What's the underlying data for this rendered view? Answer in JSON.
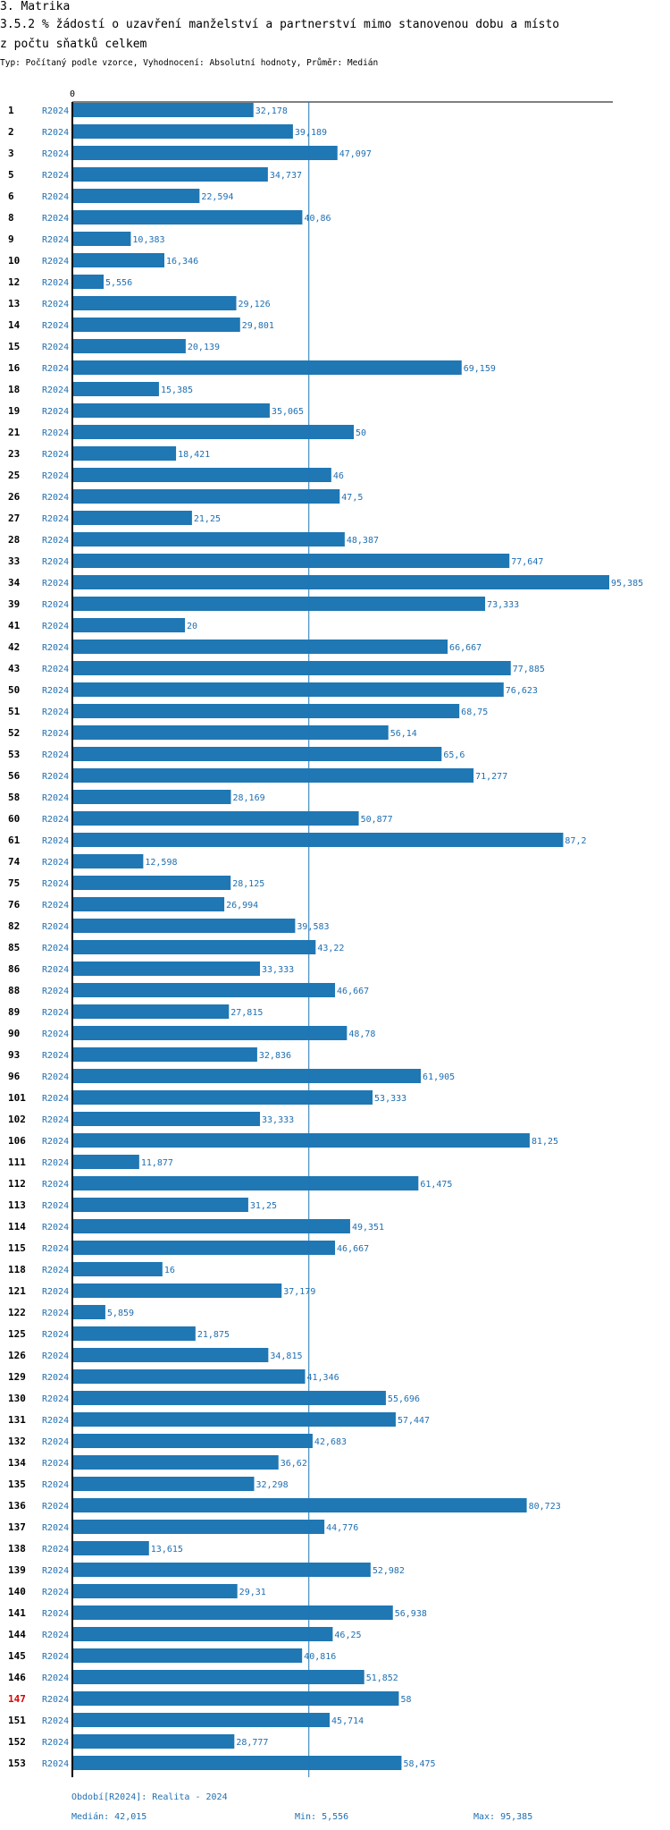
{
  "header": {
    "line1": "3. Matrika",
    "line2": "3.5.2 % žádostí o uzavření manželství a partnerství mimo stanovenou dobu a místo",
    "line3": "z počtu sňatků celkem",
    "subtitle": "Typ: Počítaný podle vzorce, Vyhodnocení: Absolutní hodnoty, Průměr: Medián"
  },
  "chart_data": {
    "type": "bar",
    "orientation": "horizontal",
    "title": "3.5.2 % žádostí o uzavření manželství a partnerství mimo stanovenou dobu a místo z počtu sňatků celkem",
    "axis_zero_label": "0",
    "xlim": [
      0,
      95.385
    ],
    "series_label": "R2024",
    "median": 42.015,
    "highlight_category": "147",
    "categories": [
      "1",
      "2",
      "3",
      "5",
      "6",
      "8",
      "9",
      "10",
      "12",
      "13",
      "14",
      "15",
      "16",
      "18",
      "19",
      "21",
      "23",
      "25",
      "26",
      "27",
      "28",
      "33",
      "34",
      "39",
      "41",
      "42",
      "43",
      "50",
      "51",
      "52",
      "53",
      "56",
      "58",
      "60",
      "61",
      "74",
      "75",
      "76",
      "82",
      "85",
      "86",
      "88",
      "89",
      "90",
      "93",
      "96",
      "101",
      "102",
      "106",
      "111",
      "112",
      "113",
      "114",
      "115",
      "118",
      "121",
      "122",
      "125",
      "126",
      "129",
      "130",
      "131",
      "132",
      "134",
      "135",
      "136",
      "137",
      "138",
      "139",
      "140",
      "141",
      "144",
      "145",
      "146",
      "147",
      "151",
      "152",
      "153"
    ],
    "values": [
      32.178,
      39.189,
      47.097,
      34.737,
      22.594,
      40.86,
      10.383,
      16.346,
      5.556,
      29.126,
      29.801,
      20.139,
      69.159,
      15.385,
      35.065,
      50,
      18.421,
      46,
      47.5,
      21.25,
      48.387,
      77.647,
      95.385,
      73.333,
      20,
      66.667,
      77.885,
      76.623,
      68.75,
      56.14,
      65.6,
      71.277,
      28.169,
      50.877,
      87.2,
      12.598,
      28.125,
      26.994,
      39.583,
      43.22,
      33.333,
      46.667,
      27.815,
      48.78,
      32.836,
      61.905,
      53.333,
      33.333,
      81.25,
      11.877,
      61.475,
      31.25,
      49.351,
      46.667,
      16,
      37.179,
      5.859,
      21.875,
      34.815,
      41.346,
      55.696,
      57.447,
      42.683,
      36.62,
      32.298,
      80.723,
      44.776,
      13.615,
      52.982,
      29.31,
      56.938,
      46.25,
      40.816,
      51.852,
      58,
      45.714,
      28.777,
      58.475
    ],
    "value_labels": [
      "32,178",
      "39,189",
      "47,097",
      "34,737",
      "22,594",
      "40,86",
      "10,383",
      "16,346",
      "5,556",
      "29,126",
      "29,801",
      "20,139",
      "69,159",
      "15,385",
      "35,065",
      "50",
      "18,421",
      "46",
      "47,5",
      "21,25",
      "48,387",
      "77,647",
      "95,385",
      "73,333",
      "20",
      "66,667",
      "77,885",
      "76,623",
      "68,75",
      "56,14",
      "65,6",
      "71,277",
      "28,169",
      "50,877",
      "87,2",
      "12,598",
      "28,125",
      "26,994",
      "39,583",
      "43,22",
      "33,333",
      "46,667",
      "27,815",
      "48,78",
      "32,836",
      "61,905",
      "53,333",
      "33,333",
      "81,25",
      "11,877",
      "61,475",
      "31,25",
      "49,351",
      "46,667",
      "16",
      "37,179",
      "5,859",
      "21,875",
      "34,815",
      "41,346",
      "55,696",
      "57,447",
      "42,683",
      "36,62",
      "32,298",
      "80,723",
      "44,776",
      "13,615",
      "52,982",
      "29,31",
      "56,938",
      "46,25",
      "40,816",
      "51,852",
      "58",
      "45,714",
      "28,777",
      "58,475"
    ]
  },
  "footer": {
    "period": "Období[R2024]: Realita - 2024",
    "median": "Medián: 42,015",
    "min": "Min: 5,556",
    "max": "Max: 95,385"
  },
  "colors": {
    "bar": "#1f77b4",
    "label": "#1f6fb2",
    "highlight": "#e00000",
    "text": "#000000"
  }
}
